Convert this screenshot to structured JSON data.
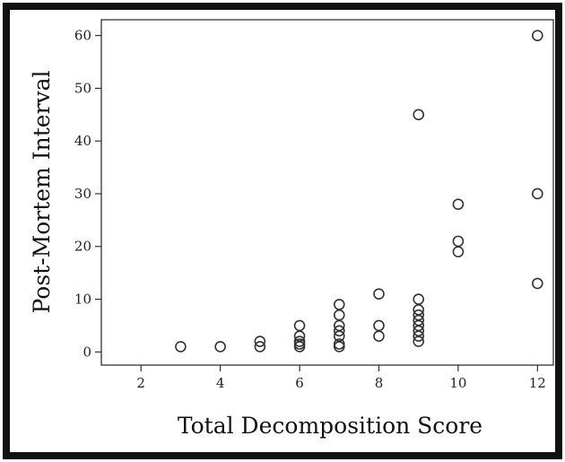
{
  "chart_data": {
    "type": "scatter",
    "title": "",
    "xlabel": "Total Decomposition Score",
    "ylabel": "Post-Mortem Interval",
    "xlim": [
      1.0,
      12.4
    ],
    "ylim": [
      -2.5,
      63
    ],
    "xticks": [
      2,
      4,
      6,
      8,
      10,
      12
    ],
    "yticks": [
      0,
      10,
      20,
      30,
      40,
      50,
      60
    ],
    "grid": false,
    "marker": "open-circle",
    "colors": {
      "marker": "#333333",
      "axis": "#222222",
      "frame": "#111111"
    },
    "points": [
      [
        3,
        1
      ],
      [
        4,
        1
      ],
      [
        5,
        1
      ],
      [
        5,
        2
      ],
      [
        6,
        1
      ],
      [
        6,
        1.5
      ],
      [
        6,
        2
      ],
      [
        6,
        3
      ],
      [
        6,
        5
      ],
      [
        7,
        1
      ],
      [
        7,
        1.5
      ],
      [
        7,
        3
      ],
      [
        7,
        4
      ],
      [
        7,
        5
      ],
      [
        7,
        7
      ],
      [
        7,
        9
      ],
      [
        8,
        3
      ],
      [
        8,
        5
      ],
      [
        8,
        11
      ],
      [
        9,
        2
      ],
      [
        9,
        3
      ],
      [
        9,
        4
      ],
      [
        9,
        5
      ],
      [
        9,
        6
      ],
      [
        9,
        7
      ],
      [
        9,
        8
      ],
      [
        9,
        10
      ],
      [
        9,
        45
      ],
      [
        10,
        19
      ],
      [
        10,
        21
      ],
      [
        10,
        28
      ],
      [
        12,
        13
      ],
      [
        12,
        30
      ],
      [
        12,
        60
      ]
    ]
  }
}
